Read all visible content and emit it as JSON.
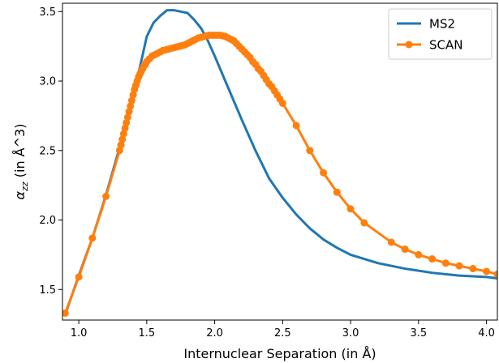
{
  "chart_data": {
    "type": "line",
    "xlabel": "Internuclear Separation (in Å)",
    "ylabel_main": "α",
    "ylabel_sub": "zz",
    "ylabel_rest": " (in Å^3)",
    "xlim": [
      0.88,
      4.08
    ],
    "ylim": [
      1.28,
      3.56
    ],
    "xticks": [
      1.0,
      1.5,
      2.0,
      2.5,
      3.0,
      3.5,
      4.0
    ],
    "xtick_labels": [
      "1.0",
      "1.5",
      "2.0",
      "2.5",
      "3.0",
      "3.5",
      "4.0"
    ],
    "yticks": [
      1.5,
      2.0,
      2.5,
      3.0,
      3.5
    ],
    "ytick_labels": [
      "1.5",
      "2.0",
      "2.5",
      "3.0",
      "3.5"
    ],
    "legend_position": "top-right",
    "series": [
      {
        "name": "MS2",
        "color": "#1f77b4",
        "markers": false,
        "x": [
          0.9,
          1.0,
          1.1,
          1.2,
          1.3,
          1.4,
          1.45,
          1.5,
          1.55,
          1.6,
          1.65,
          1.7,
          1.75,
          1.8,
          1.85,
          1.9,
          1.95,
          2.0,
          2.1,
          2.2,
          2.3,
          2.4,
          2.5,
          2.6,
          2.7,
          2.8,
          2.9,
          3.0,
          3.2,
          3.4,
          3.6,
          3.8,
          4.0,
          4.08
        ],
        "y": [
          1.32,
          1.6,
          1.87,
          2.18,
          2.52,
          2.9,
          3.1,
          3.32,
          3.42,
          3.47,
          3.51,
          3.51,
          3.5,
          3.49,
          3.44,
          3.38,
          3.29,
          3.18,
          2.95,
          2.72,
          2.5,
          2.3,
          2.16,
          2.04,
          1.94,
          1.86,
          1.8,
          1.75,
          1.69,
          1.65,
          1.62,
          1.6,
          1.59,
          1.58
        ]
      },
      {
        "name": "SCAN",
        "color": "#ff7f0e",
        "markers": true,
        "x": [
          0.9,
          1.0,
          1.1,
          1.2,
          1.3,
          1.31,
          1.32,
          1.33,
          1.34,
          1.35,
          1.36,
          1.37,
          1.38,
          1.39,
          1.4,
          1.41,
          1.42,
          1.43,
          1.44,
          1.45,
          1.46,
          1.47,
          1.48,
          1.49,
          1.5,
          1.52,
          1.54,
          1.56,
          1.58,
          1.6,
          1.62,
          1.64,
          1.66,
          1.68,
          1.7,
          1.72,
          1.74,
          1.76,
          1.78,
          1.8,
          1.82,
          1.84,
          1.86,
          1.88,
          1.9,
          1.92,
          1.94,
          1.96,
          1.98,
          2.0,
          2.02,
          2.04,
          2.06,
          2.08,
          2.1,
          2.12,
          2.14,
          2.16,
          2.18,
          2.2,
          2.22,
          2.24,
          2.26,
          2.28,
          2.3,
          2.32,
          2.34,
          2.36,
          2.38,
          2.4,
          2.42,
          2.44,
          2.46,
          2.48,
          2.5,
          2.6,
          2.7,
          2.8,
          2.9,
          3.0,
          3.1,
          3.3,
          3.4,
          3.5,
          3.6,
          3.7,
          3.8,
          3.9,
          4.0,
          4.08
        ],
        "y": [
          1.33,
          1.59,
          1.87,
          2.17,
          2.5,
          2.54,
          2.58,
          2.62,
          2.66,
          2.7,
          2.74,
          2.78,
          2.82,
          2.86,
          2.9,
          2.94,
          2.97,
          3.0,
          3.03,
          3.05,
          3.07,
          3.09,
          3.11,
          3.12,
          3.14,
          3.16,
          3.18,
          3.19,
          3.2,
          3.21,
          3.22,
          3.225,
          3.23,
          3.235,
          3.24,
          3.245,
          3.25,
          3.255,
          3.26,
          3.27,
          3.28,
          3.29,
          3.3,
          3.31,
          3.315,
          3.32,
          3.325,
          3.33,
          3.33,
          3.33,
          3.33,
          3.33,
          3.325,
          3.32,
          3.31,
          3.3,
          3.29,
          3.27,
          3.25,
          3.23,
          3.21,
          3.19,
          3.17,
          3.14,
          3.12,
          3.09,
          3.07,
          3.04,
          3.01,
          2.98,
          2.96,
          2.93,
          2.9,
          2.87,
          2.84,
          2.68,
          2.5,
          2.34,
          2.2,
          2.08,
          1.98,
          1.84,
          1.79,
          1.75,
          1.72,
          1.69,
          1.67,
          1.65,
          1.63,
          1.61
        ]
      }
    ]
  }
}
